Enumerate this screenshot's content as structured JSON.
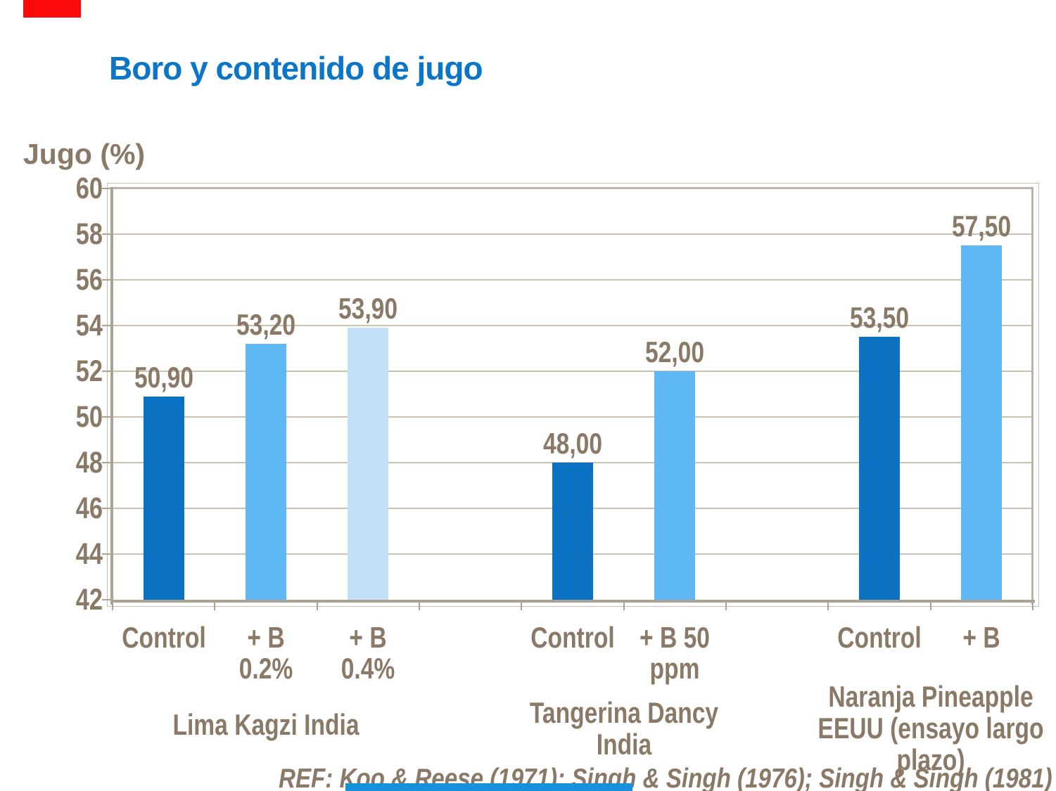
{
  "title": "Boro y contenido de jugo",
  "y_axis_title": "Jugo (%)",
  "footer": {
    "ref_text": "REF: Koo & Reese (1971); Singh & Singh (1976); Singh & Singh (1981)"
  },
  "decorations": {
    "top_left_bar_color": "#FB0A0A",
    "bottom_bar_color": "#1791DC"
  },
  "style_colors": {
    "title_color": "#0B76C7",
    "text_brown": "#8A7966",
    "gridline": "#CBC2B2",
    "frame": "#BCB3A3",
    "axis": "#ACA292"
  },
  "chart_data": {
    "type": "bar",
    "title": "Boro y contenido de jugo",
    "ylabel": "Jugo (%)",
    "ylim": [
      42,
      60
    ],
    "ytick_step": 2,
    "grid": true,
    "legend": "none",
    "series_colors": {
      "control": "#0A71C3",
      "boron_mid": "#5FB7F4",
      "boron_light": "#C2E0F8"
    },
    "groups": [
      {
        "name_lines": [
          "Lima Kagzi India"
        ],
        "bars": [
          {
            "label_lines": [
              "Control"
            ],
            "value": 50.9,
            "value_label": "50,90",
            "series": "control"
          },
          {
            "label_lines": [
              "+ B",
              "0.2%"
            ],
            "value": 53.2,
            "value_label": "53,20",
            "series": "boron_mid"
          },
          {
            "label_lines": [
              "+ B",
              "0.4%"
            ],
            "value": 53.9,
            "value_label": "53,90",
            "series": "boron_light"
          }
        ]
      },
      {
        "name_lines": [
          "Tangerina Dancy",
          "India"
        ],
        "bars": [
          {
            "label_lines": [
              "Control"
            ],
            "value": 48.0,
            "value_label": "48,00",
            "series": "control"
          },
          {
            "label_lines": [
              "+ B 50",
              "ppm"
            ],
            "value": 52.0,
            "value_label": "52,00",
            "series": "boron_mid"
          }
        ]
      },
      {
        "name_lines": [
          "Naranja Pineapple",
          "EEUU (ensayo largo",
          "plazo)"
        ],
        "bars": [
          {
            "label_lines": [
              "Control"
            ],
            "value": 53.5,
            "value_label": "53,50",
            "series": "control"
          },
          {
            "label_lines": [
              "+ B"
            ],
            "value": 57.5,
            "value_label": "57,50",
            "series": "boron_mid"
          }
        ]
      }
    ]
  }
}
